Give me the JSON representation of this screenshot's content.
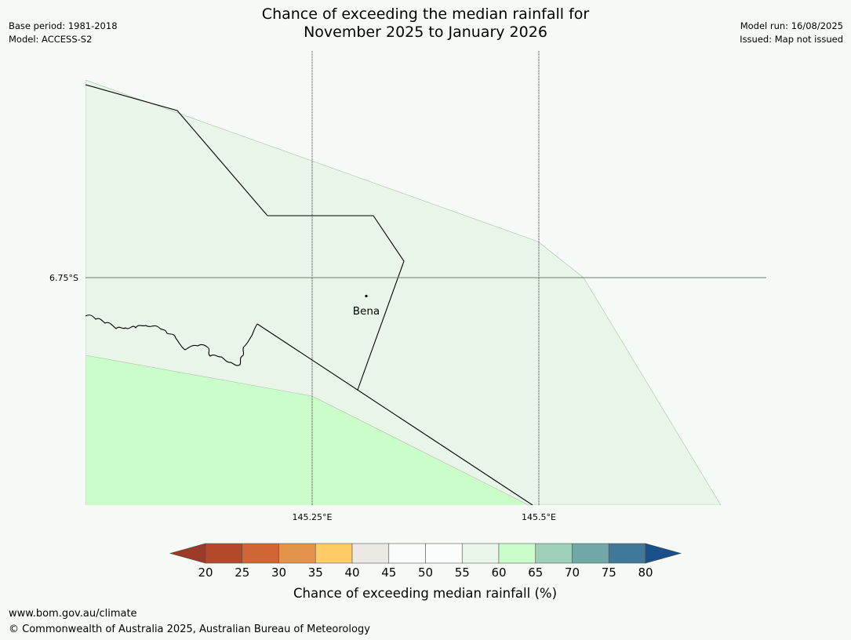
{
  "title_line1": "Chance of exceeding the median rainfall for",
  "title_line2": "November 2025 to January 2026",
  "meta_left": {
    "base_period": "Base period: 1981-2018",
    "model": "Model: ACCESS-S2"
  },
  "meta_right": {
    "model_run": "Model run: 16/08/2025",
    "issued": "Issued: Map not issued"
  },
  "map": {
    "lat_label": "6.75°S",
    "lon_labels": [
      "145.25°E",
      "145.5°E"
    ],
    "place_label": "Bena"
  },
  "legend": {
    "ticks": [
      "20",
      "25",
      "30",
      "35",
      "40",
      "45",
      "50",
      "55",
      "60",
      "65",
      "70",
      "75",
      "80"
    ],
    "colors": [
      "#9b3a26",
      "#b5482a",
      "#d06535",
      "#e3944a",
      "#fecc66",
      "#ece9e5",
      "#f9fbfa",
      "#fbfdfc",
      "#e9f5e9",
      "#cbfdcb",
      "#9ed0b9",
      "#70a7a7",
      "#3f7899",
      "#1a4f8a"
    ],
    "label": "Chance of exceeding median rainfall (%)"
  },
  "footer": {
    "url": "www.bom.gov.au/climate",
    "copyright": "© Commonwealth of Australia 2025, Australian Bureau of Meteorology"
  }
}
